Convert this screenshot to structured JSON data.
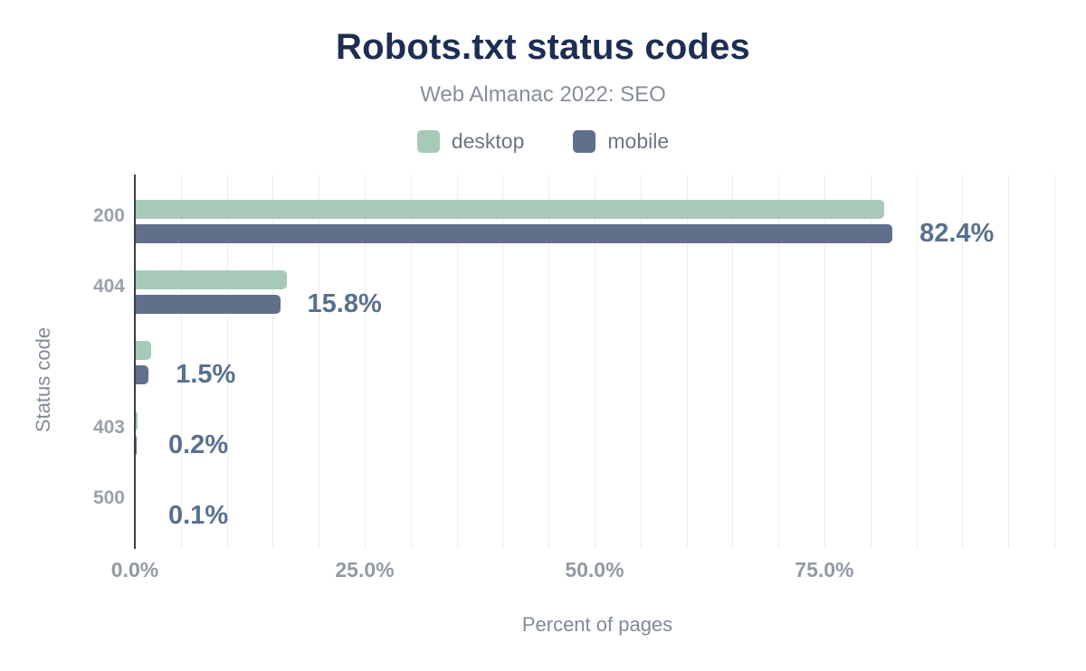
{
  "title": "Robots.txt status codes",
  "subtitle": "Web Almanac 2022: SEO",
  "legend": [
    {
      "label": "desktop",
      "color": "#a6c9b8"
    },
    {
      "label": "mobile",
      "color": "#616f8a"
    }
  ],
  "chart_data": {
    "type": "bar",
    "orientation": "horizontal",
    "title": "Robots.txt status codes",
    "subtitle": "Web Almanac 2022: SEO",
    "categories": [
      "200",
      "404",
      "",
      "403",
      "500"
    ],
    "series": [
      {
        "name": "desktop",
        "color": "#a6c9b8",
        "values": [
          81.5,
          16.5,
          1.8,
          0.3,
          0.1
        ]
      },
      {
        "name": "mobile",
        "color": "#616f8a",
        "values": [
          82.4,
          15.8,
          1.5,
          0.2,
          0.1
        ]
      }
    ],
    "data_labels": [
      "82.4%",
      "15.8%",
      "1.5%",
      "0.2%",
      "0.1%"
    ],
    "data_labels_series": "mobile",
    "xlabel": "Percent of pages",
    "ylabel": "Status code",
    "x_ticks": [
      {
        "value": 0,
        "label": "0.0%"
      },
      {
        "value": 25,
        "label": "25.0%"
      },
      {
        "value": 50,
        "label": "50.0%"
      },
      {
        "value": 75,
        "label": "75.0%"
      }
    ],
    "xlim": [
      0,
      100.7
    ],
    "grid": true,
    "grid_step_percent": 5,
    "legend_position": "top"
  },
  "colors": {
    "title": "#1e2d52",
    "subtitle": "#878e9a",
    "legend_text": "#6d7580",
    "axis_title": "#828a97",
    "y_tick": "#9aa1ab",
    "x_tick": "#9399a4",
    "data_label": "#58708f",
    "axis_line": "#3a3e45",
    "gridline": "#ececef",
    "background": "#ffffff"
  }
}
